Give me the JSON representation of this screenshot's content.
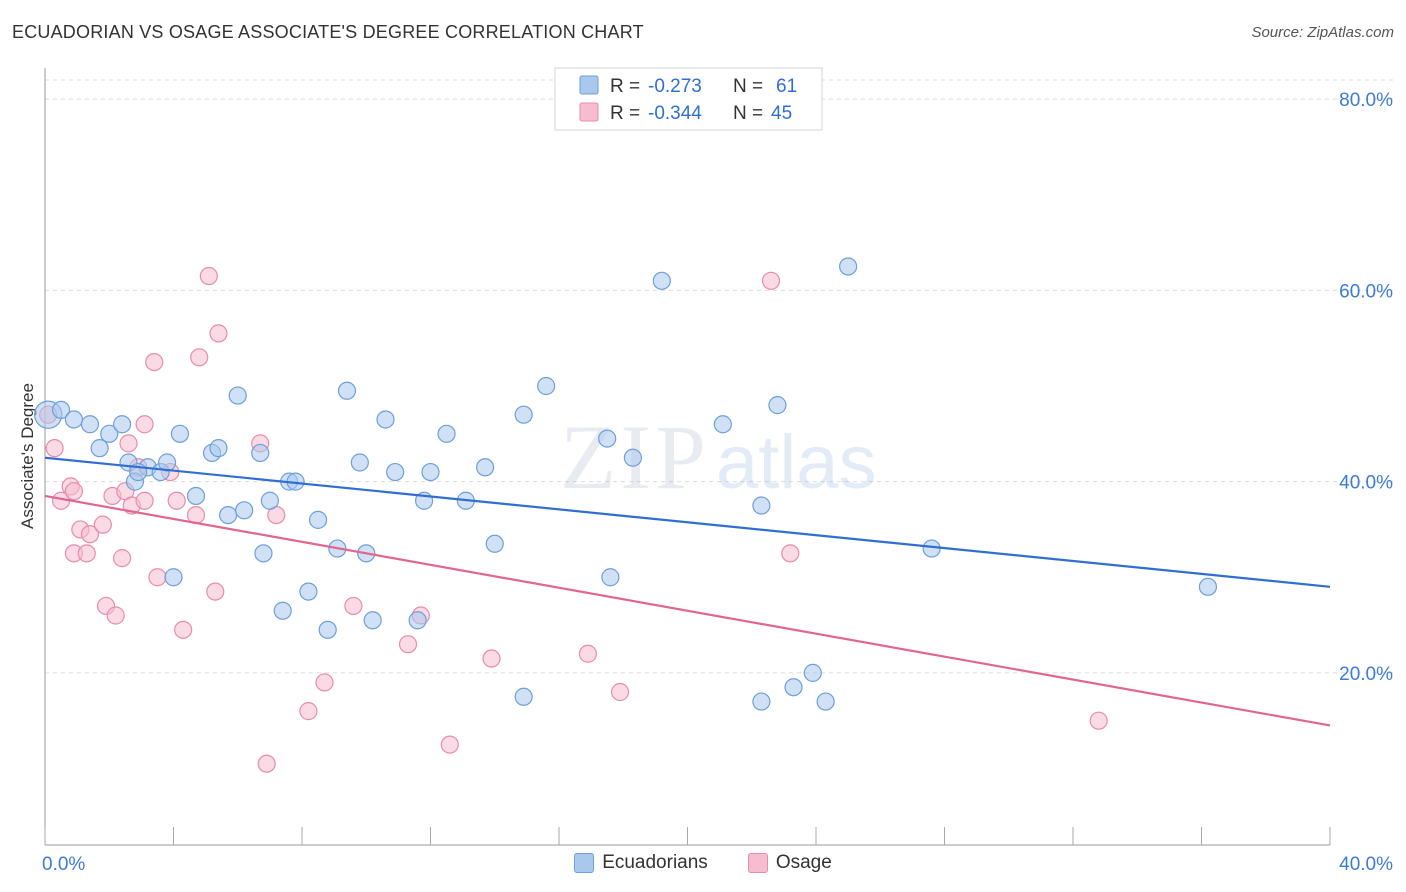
{
  "header": {
    "title": "ECUADORIAN VS OSAGE ASSOCIATE'S DEGREE CORRELATION CHART",
    "source": "Source: ZipAtlas.com"
  },
  "watermark": {
    "zip": "ZIP",
    "atlas": "atlas"
  },
  "colors": {
    "blue_fill": "#a9c8ee",
    "blue_stroke": "#6f9fd8",
    "blue_line": "#2f6fd0",
    "pink_fill": "#f6bcd0",
    "pink_stroke": "#e88cab",
    "pink_line": "#e06690",
    "tick_text": "#3d7bd8",
    "grid": "#dcdcdc"
  },
  "legend": {
    "rows": [
      {
        "r_label": "R =",
        "r_value": "-0.273",
        "n_label": "N =",
        "n_value": "61",
        "series": "blue"
      },
      {
        "r_label": "R =",
        "r_value": "-0.344",
        "n_label": "N =",
        "n_value": "45",
        "series": "pink"
      }
    ]
  },
  "bottom_legend": {
    "items": [
      "Ecuadorians",
      "Osage"
    ]
  },
  "chart_data": {
    "type": "scatter",
    "title": "ECUADORIAN VS OSAGE ASSOCIATE'S DEGREE CORRELATION CHART",
    "xlabel": "",
    "ylabel": "Associate's Degree",
    "xlim": [
      0,
      40
    ],
    "ylim": [
      2,
      82
    ],
    "x_tick_labels": [
      "0.0%",
      "40.0%"
    ],
    "y_ticks": [
      20,
      40,
      60,
      80
    ],
    "y_tick_labels": [
      "20.0%",
      "40.0%",
      "60.0%",
      "80.0%"
    ],
    "grid": true,
    "series": [
      {
        "name": "Ecuadorians",
        "r": -0.273,
        "n": 61,
        "trend": {
          "x": [
            0,
            40
          ],
          "y": [
            42.5,
            29.0
          ]
        },
        "points": [
          [
            0.1,
            47.0,
            1.6
          ],
          [
            0.5,
            47.5,
            1
          ],
          [
            0.9,
            46.5,
            1
          ],
          [
            1.4,
            46.0,
            1
          ],
          [
            2.0,
            45.0,
            1
          ],
          [
            2.4,
            46.0,
            1
          ],
          [
            1.7,
            43.5,
            1
          ],
          [
            2.6,
            42.0,
            1
          ],
          [
            2.8,
            40.0,
            1
          ],
          [
            3.2,
            41.5,
            1
          ],
          [
            3.6,
            41.0,
            1
          ],
          [
            4.2,
            45.0,
            1
          ],
          [
            4.7,
            38.5,
            1
          ],
          [
            5.2,
            43.0,
            1
          ],
          [
            5.4,
            43.5,
            1
          ],
          [
            5.7,
            36.5,
            1
          ],
          [
            6.0,
            49.0,
            1
          ],
          [
            6.2,
            37.0,
            1
          ],
          [
            6.7,
            43.0,
            1
          ],
          [
            6.8,
            32.5,
            1
          ],
          [
            7.0,
            38.0,
            1
          ],
          [
            7.4,
            26.5,
            1
          ],
          [
            7.6,
            40.0,
            1
          ],
          [
            7.8,
            40.0,
            1
          ],
          [
            8.2,
            28.5,
            1
          ],
          [
            8.5,
            36.0,
            1
          ],
          [
            8.8,
            24.5,
            1
          ],
          [
            9.1,
            33.0,
            1
          ],
          [
            9.4,
            49.5,
            1
          ],
          [
            9.8,
            42.0,
            1
          ],
          [
            10.0,
            32.5,
            1
          ],
          [
            10.2,
            25.5,
            1
          ],
          [
            10.6,
            46.5,
            1
          ],
          [
            10.9,
            41.0,
            1
          ],
          [
            11.6,
            25.5,
            1
          ],
          [
            11.8,
            38.0,
            1
          ],
          [
            12.0,
            41.0,
            1
          ],
          [
            12.5,
            45.0,
            1
          ],
          [
            13.1,
            38.0,
            1
          ],
          [
            13.7,
            41.5,
            1
          ],
          [
            14.0,
            33.5,
            1
          ],
          [
            14.9,
            47.0,
            1
          ],
          [
            14.9,
            17.5,
            1
          ],
          [
            15.6,
            50.0,
            1
          ],
          [
            17.5,
            44.5,
            1
          ],
          [
            17.6,
            30.0,
            1
          ],
          [
            18.3,
            42.5,
            1
          ],
          [
            19.2,
            61.0,
            1
          ],
          [
            21.1,
            46.0,
            1
          ],
          [
            22.3,
            37.5,
            1
          ],
          [
            22.3,
            17.0,
            1
          ],
          [
            22.8,
            48.0,
            1
          ],
          [
            23.3,
            18.5,
            1
          ],
          [
            23.9,
            20.0,
            1
          ],
          [
            24.3,
            17.0,
            1
          ],
          [
            25.0,
            62.5,
            1
          ],
          [
            27.6,
            33.0,
            1
          ],
          [
            36.2,
            29.0,
            1
          ],
          [
            4.0,
            30.0,
            1
          ],
          [
            3.8,
            42.0,
            1
          ],
          [
            2.9,
            41.0,
            1
          ]
        ]
      },
      {
        "name": "Osage",
        "r": -0.344,
        "n": 45,
        "trend": {
          "x": [
            0,
            40
          ],
          "y": [
            38.5,
            14.5
          ]
        },
        "points": [
          [
            0.3,
            43.5,
            1
          ],
          [
            0.5,
            38.0,
            1
          ],
          [
            0.8,
            39.5,
            1
          ],
          [
            0.9,
            39.0,
            1
          ],
          [
            0.9,
            32.5,
            1
          ],
          [
            1.1,
            35.0,
            1
          ],
          [
            1.3,
            32.5,
            1
          ],
          [
            1.4,
            34.5,
            1
          ],
          [
            1.8,
            35.5,
            1
          ],
          [
            1.9,
            27.0,
            1
          ],
          [
            2.1,
            38.5,
            1
          ],
          [
            2.2,
            26.0,
            1
          ],
          [
            2.4,
            32.0,
            1
          ],
          [
            2.5,
            39.0,
            1
          ],
          [
            2.6,
            44.0,
            1
          ],
          [
            2.7,
            37.5,
            1
          ],
          [
            2.9,
            41.5,
            1
          ],
          [
            3.1,
            38.0,
            1
          ],
          [
            3.1,
            46.0,
            1
          ],
          [
            3.4,
            52.5,
            1
          ],
          [
            3.5,
            30.0,
            1
          ],
          [
            3.9,
            41.0,
            1
          ],
          [
            4.1,
            38.0,
            1
          ],
          [
            4.3,
            24.5,
            1
          ],
          [
            4.7,
            36.5,
            1
          ],
          [
            4.8,
            53.0,
            1
          ],
          [
            5.1,
            61.5,
            1
          ],
          [
            5.3,
            28.5,
            1
          ],
          [
            5.4,
            55.5,
            1
          ],
          [
            6.7,
            44.0,
            1
          ],
          [
            6.9,
            10.5,
            1
          ],
          [
            7.2,
            36.5,
            1
          ],
          [
            8.2,
            16.0,
            1
          ],
          [
            8.7,
            19.0,
            1
          ],
          [
            9.6,
            27.0,
            1
          ],
          [
            11.3,
            23.0,
            1
          ],
          [
            11.7,
            26.0,
            1
          ],
          [
            12.6,
            12.5,
            1
          ],
          [
            13.9,
            21.5,
            1
          ],
          [
            16.9,
            22.0,
            1
          ],
          [
            17.9,
            18.0,
            1
          ],
          [
            22.6,
            61.0,
            1
          ],
          [
            23.2,
            32.5,
            1
          ],
          [
            32.8,
            15.0,
            1
          ],
          [
            0.1,
            47.0,
            1
          ]
        ]
      }
    ]
  }
}
